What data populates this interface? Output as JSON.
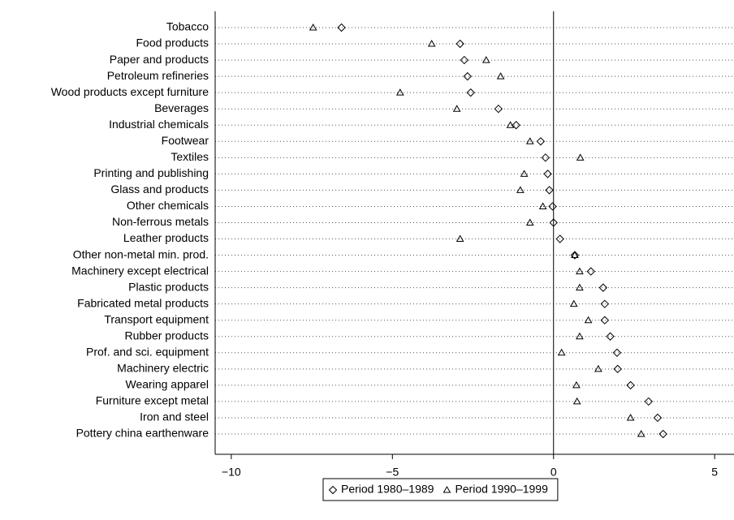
{
  "chart_data": {
    "type": "dot",
    "categories": [
      "Tobacco",
      "Food products",
      "Paper and products",
      "Petroleum refineries",
      "Wood products except furniture",
      "Beverages",
      "Industrial chemicals",
      "Footwear",
      "Textiles",
      "Printing and publishing",
      "Glass and products",
      "Other chemicals",
      "Non-ferrous metals",
      "Leather products",
      "Other non-metal min. prod.",
      "Machinery except electrical",
      "Plastic products",
      "Fabricated metal products",
      "Transport equipment",
      "Rubber products",
      "Prof. and sci. equipment",
      "Machinery electric",
      "Wearing apparel",
      "Furniture except metal",
      "Iron and steel",
      "Pottery china earthenware"
    ],
    "series": [
      {
        "name": "Period 1980–1989",
        "marker": "diamond",
        "color": "#000000",
        "values": [
          -6.58,
          -2.9,
          -2.77,
          -2.67,
          -2.57,
          -1.71,
          -1.16,
          -0.4,
          -0.25,
          -0.18,
          -0.13,
          -0.03,
          0,
          0.2,
          0.66,
          1.16,
          1.54,
          1.59,
          1.59,
          1.76,
          1.97,
          1.99,
          2.39,
          2.95,
          3.23,
          3.4
        ]
      },
      {
        "name": "Period 1990–1999",
        "marker": "triangle",
        "color": "#000000",
        "values": [
          -7.46,
          -3.78,
          -2.09,
          -1.64,
          -4.76,
          -3.0,
          -1.34,
          -0.73,
          0.83,
          -0.91,
          -1.03,
          -0.33,
          -0.73,
          -2.9,
          0.66,
          0.81,
          0.81,
          0.63,
          1.08,
          0.81,
          0.25,
          1.39,
          0.71,
          0.73,
          2.39,
          2.72
        ]
      }
    ],
    "xlim": [
      -10.5,
      5.6
    ],
    "xticks": [
      {
        "value": -10,
        "label": "−10"
      },
      {
        "value": -5,
        "label": "−5"
      },
      0,
      5
    ],
    "reference_line": 0,
    "legend": "bottom"
  }
}
